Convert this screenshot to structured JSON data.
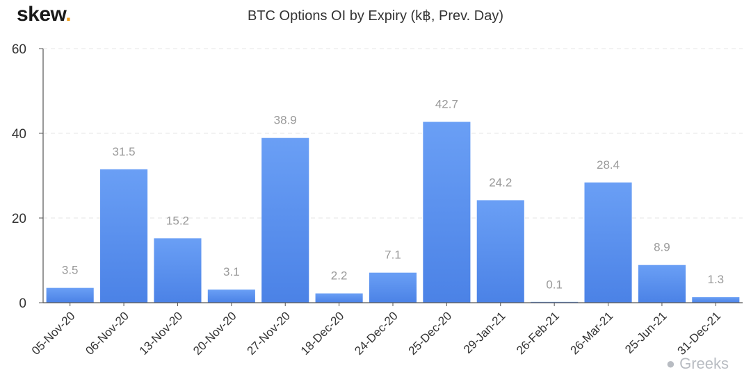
{
  "header": {
    "logo_text": "skew",
    "logo_dot": ".",
    "title": "BTC Options OI by Expiry (k฿, Prev. Day)"
  },
  "watermark": {
    "text": "Greeks",
    "icon": "wechat-icon"
  },
  "colors": {
    "bar_top": "#6a9ff5",
    "bar_bottom": "#4b82e6",
    "label": "#9a9a9a",
    "grid": "#e6e6e6",
    "axis": "#555555",
    "logo_accent": "#f0a01e"
  },
  "chart_data": {
    "type": "bar",
    "title": "BTC Options OI by Expiry (k฿, Prev. Day)",
    "xlabel": "",
    "ylabel": "",
    "categories": [
      "05-Nov-20",
      "06-Nov-20",
      "13-Nov-20",
      "20-Nov-20",
      "27-Nov-20",
      "18-Dec-20",
      "24-Dec-20",
      "25-Dec-20",
      "29-Jan-21",
      "26-Feb-21",
      "26-Mar-21",
      "25-Jun-21",
      "31-Dec-21"
    ],
    "values": [
      3.5,
      31.5,
      15.2,
      3.1,
      38.9,
      2.2,
      7.1,
      42.7,
      24.2,
      0.1,
      28.4,
      8.9,
      1.3
    ],
    "value_labels": [
      "3.5",
      "31.5",
      "15.2",
      "3.1",
      "38.9",
      "2.2",
      "7.1",
      "42.7",
      "24.2",
      "0.1",
      "28.4",
      "8.9",
      "1.3"
    ],
    "ylim": [
      0,
      60
    ],
    "yticks": [
      0,
      20,
      40,
      60
    ],
    "ytick_labels": [
      "0",
      "20",
      "40",
      "60"
    ],
    "grid": true,
    "legend": "none"
  }
}
